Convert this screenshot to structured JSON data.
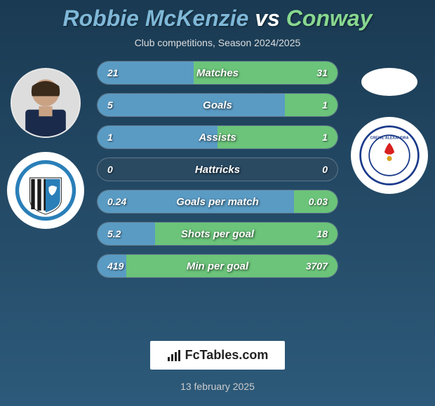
{
  "background": {
    "gradient_top": "#1a3a52",
    "gradient_bottom": "#2d5a7a"
  },
  "title": {
    "player1": "Robbie McKenzie",
    "vs": "vs",
    "player2": "Conway",
    "color_p1": "#7fb8d8",
    "color_vs": "#ffffff",
    "color_p2": "#88d890"
  },
  "subtitle": "Club competitions, Season 2024/2025",
  "club1": {
    "name": "Gillingham",
    "colors": {
      "stripe_dark": "#1a1a1a",
      "stripe_light": "#ffffff",
      "accent": "#2a7fb8"
    }
  },
  "club2": {
    "name": "Crewe Alexandra",
    "colors": {
      "ring": "#1a3a8a",
      "accent": "#d82020"
    }
  },
  "fill_colors": {
    "left": "#5a9bc4",
    "right": "#6bc47a",
    "bg": "#2a4a62"
  },
  "bars": [
    {
      "label": "Matches",
      "v1": "21",
      "v2": "31",
      "w1": 40,
      "w2": 60
    },
    {
      "label": "Goals",
      "v1": "5",
      "v2": "1",
      "w1": 78,
      "w2": 22
    },
    {
      "label": "Assists",
      "v1": "1",
      "v2": "1",
      "w1": 50,
      "w2": 50
    },
    {
      "label": "Hattricks",
      "v1": "0",
      "v2": "0",
      "w1": 0,
      "w2": 0
    },
    {
      "label": "Goals per match",
      "v1": "0.24",
      "v2": "0.03",
      "w1": 82,
      "w2": 18
    },
    {
      "label": "Shots per goal",
      "v1": "5.2",
      "v2": "18",
      "w1": 24,
      "w2": 76
    },
    {
      "label": "Min per goal",
      "v1": "419",
      "v2": "3707",
      "w1": 12,
      "w2": 88
    }
  ],
  "footer": {
    "logo_text": "FcTables.com",
    "date": "13 february 2025"
  }
}
